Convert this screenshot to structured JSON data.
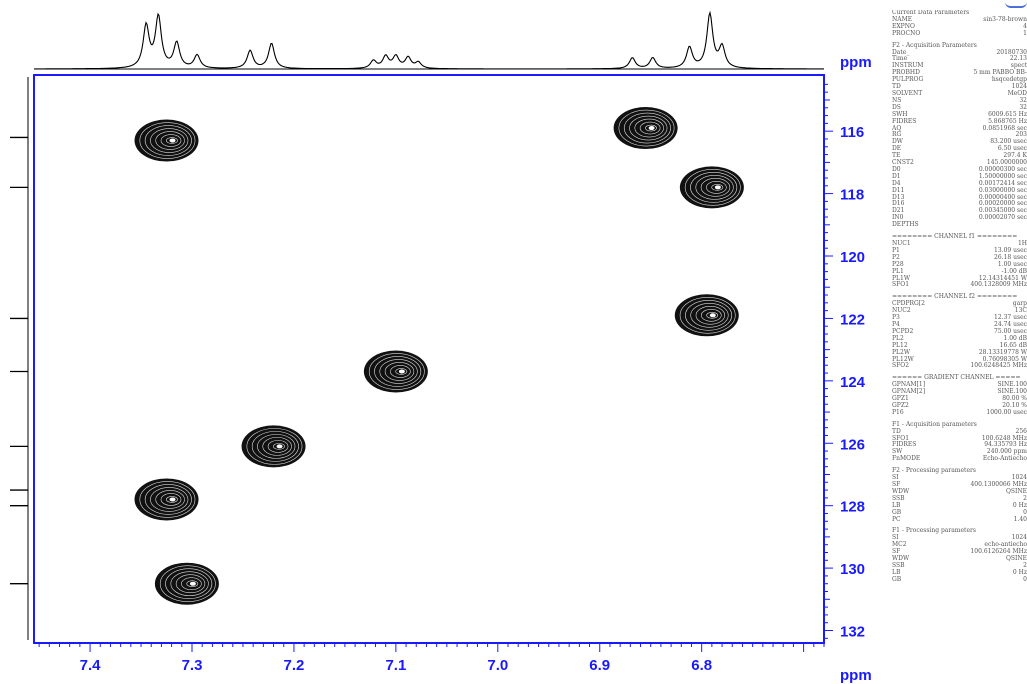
{
  "colors": {
    "axis": "#1a1aff",
    "frame": "#1a1aff",
    "trace": "#000000"
  },
  "chart_data": {
    "type": "heatmap",
    "title": "",
    "xlabel": "ppm",
    "ylabel": "ppm",
    "xlim": [
      7.455,
      6.68
    ],
    "ylim": [
      114.2,
      132.4
    ],
    "x_ticks": [
      7.4,
      7.3,
      7.2,
      7.1,
      7.0,
      6.9,
      6.8
    ],
    "x_tick_labels": [
      "7.4",
      "7.3",
      "7.2",
      "7.1",
      "7.0",
      "6.9",
      "6.8"
    ],
    "y_ticks": [
      116,
      118,
      120,
      122,
      124,
      126,
      128,
      130,
      132
    ],
    "y_tick_labels": [
      "116",
      "118",
      "120",
      "122",
      "124",
      "126",
      "128",
      "130",
      "132"
    ],
    "cross_peaks": [
      {
        "h_ppm": 7.325,
        "c_ppm": 116.3
      },
      {
        "h_ppm": 6.855,
        "c_ppm": 115.9
      },
      {
        "h_ppm": 6.79,
        "c_ppm": 117.8
      },
      {
        "h_ppm": 6.795,
        "c_ppm": 121.9
      },
      {
        "h_ppm": 7.1,
        "c_ppm": 123.7
      },
      {
        "h_ppm": 7.22,
        "c_ppm": 126.1
      },
      {
        "h_ppm": 7.325,
        "c_ppm": 127.8
      },
      {
        "h_ppm": 7.305,
        "c_ppm": 130.5
      }
    ],
    "f2_projection_peaks": [
      {
        "ppm": 7.345,
        "height": 0.7
      },
      {
        "ppm": 7.333,
        "height": 0.85
      },
      {
        "ppm": 7.315,
        "height": 0.42
      },
      {
        "ppm": 7.295,
        "height": 0.22
      },
      {
        "ppm": 7.243,
        "height": 0.3
      },
      {
        "ppm": 7.222,
        "height": 0.42
      },
      {
        "ppm": 7.122,
        "height": 0.13
      },
      {
        "ppm": 7.11,
        "height": 0.2
      },
      {
        "ppm": 7.1,
        "height": 0.2
      },
      {
        "ppm": 7.088,
        "height": 0.18
      },
      {
        "ppm": 7.078,
        "height": 0.1
      },
      {
        "ppm": 6.868,
        "height": 0.18
      },
      {
        "ppm": 6.848,
        "height": 0.18
      },
      {
        "ppm": 6.812,
        "height": 0.35
      },
      {
        "ppm": 6.792,
        "height": 0.9
      },
      {
        "ppm": 6.78,
        "height": 0.35
      }
    ],
    "f1_projection_peaks": [
      {
        "ppm": 116.2
      },
      {
        "ppm": 117.8
      },
      {
        "ppm": 122.0
      },
      {
        "ppm": 123.7
      },
      {
        "ppm": 126.1
      },
      {
        "ppm": 127.5
      },
      {
        "ppm": 128.0
      },
      {
        "ppm": 130.5
      }
    ]
  },
  "parameters": [
    {
      "head": "Current Data Parameters",
      "rows": [
        [
          "NAME",
          "sin3-78-brown"
        ],
        [
          "EXPNO",
          "4"
        ],
        [
          "PROCNO",
          "1"
        ]
      ]
    },
    {
      "head": "F2 - Acquisition Parameters",
      "rows": [
        [
          "Date_",
          "20180730"
        ],
        [
          "Time",
          "22.13"
        ],
        [
          "INSTRUM",
          "spect"
        ],
        [
          "PROBHD",
          "5 mm PABBO BB-"
        ],
        [
          "PULPROG",
          "hsqcedetgp"
        ],
        [
          "TD",
          "1024"
        ],
        [
          "SOLVENT",
          "MeOD"
        ],
        [
          "NS",
          "32"
        ],
        [
          "DS",
          "32"
        ],
        [
          "SWH",
          "6009.615 Hz"
        ],
        [
          "FIDRES",
          "5.868765 Hz"
        ],
        [
          "AQ",
          "0.0851968 sec"
        ],
        [
          "RG",
          "203"
        ],
        [
          "DW",
          "83.200 usec"
        ],
        [
          "DE",
          "6.50 usec"
        ],
        [
          "TE",
          "297.4 K"
        ],
        [
          "CNST2",
          "145.0000000"
        ],
        [
          "D0",
          "0.00000300 sec"
        ],
        [
          "D1",
          "1.50000000 sec"
        ],
        [
          "D4",
          "0.00172414 sec"
        ],
        [
          "D11",
          "0.03000000 sec"
        ],
        [
          "D13",
          "0.00000400 sec"
        ],
        [
          "D16",
          "0.00020000 sec"
        ],
        [
          "D21",
          "0.00345000 sec"
        ],
        [
          "IN0",
          "0.00002070 sec"
        ],
        [
          "DEPTHS",
          ""
        ]
      ]
    },
    {
      "head": "======== CHANNEL f1 ========",
      "rows": [
        [
          "NUC1",
          "1H"
        ],
        [
          "P1",
          "13.09 usec"
        ],
        [
          "P2",
          "26.18 usec"
        ],
        [
          "P28",
          "1.00 usec"
        ],
        [
          "PL1",
          "-1.00 dB"
        ],
        [
          "PL1W",
          "12.14314451 W"
        ],
        [
          "SFO1",
          "400.1328009 MHz"
        ]
      ]
    },
    {
      "head": "======== CHANNEL f2 ========",
      "rows": [
        [
          "CPDPRG[2",
          "garp"
        ],
        [
          "NUC2",
          "13C"
        ],
        [
          "P3",
          "12.37 usec"
        ],
        [
          "P4",
          "24.74 usec"
        ],
        [
          "PCPD2",
          "75.00 usec"
        ],
        [
          "PL2",
          "1.00 dB"
        ],
        [
          "PL12",
          "16.65 dB"
        ],
        [
          "PL2W",
          "28.13319778 W"
        ],
        [
          "PL12W",
          "0.76098305 W"
        ],
        [
          "SFO2",
          "100.6248425 MHz"
        ]
      ]
    },
    {
      "head": "====== GRADIENT CHANNEL =====",
      "rows": [
        [
          "GPNAM[1]",
          "SINE.100"
        ],
        [
          "GPNAM[2]",
          "SINE.100"
        ],
        [
          "GPZ1",
          "80.00 %"
        ],
        [
          "GPZ2",
          "20.10 %"
        ],
        [
          "P16",
          "1000.00 usec"
        ]
      ]
    },
    {
      "head": "F1 - Acquisition parameters",
      "rows": [
        [
          "TD",
          "256"
        ],
        [
          "SFO1",
          "100.6248 MHz"
        ],
        [
          "FIDRES",
          "94.335793 Hz"
        ],
        [
          "SW",
          "240.000 ppm"
        ],
        [
          "FnMODE",
          "Echo-Antiecho"
        ]
      ]
    },
    {
      "head": "F2 - Processing parameters",
      "rows": [
        [
          "SI",
          "1024"
        ],
        [
          "SF",
          "400.1300066 MHz"
        ],
        [
          "WDW",
          "QSINE"
        ],
        [
          "SSB",
          "2"
        ],
        [
          "LB",
          "0 Hz"
        ],
        [
          "GB",
          "0"
        ],
        [
          "PC",
          "1.40"
        ]
      ]
    },
    {
      "head": "F1 - Processing parameters",
      "rows": [
        [
          "SI",
          "1024"
        ],
        [
          "MC2",
          "echo-antiecho"
        ],
        [
          "SF",
          "100.6126264 MHz"
        ],
        [
          "WDW",
          "QSINE"
        ],
        [
          "SSB",
          "2"
        ],
        [
          "LB",
          "0 Hz"
        ],
        [
          "GB",
          "0"
        ]
      ]
    }
  ]
}
